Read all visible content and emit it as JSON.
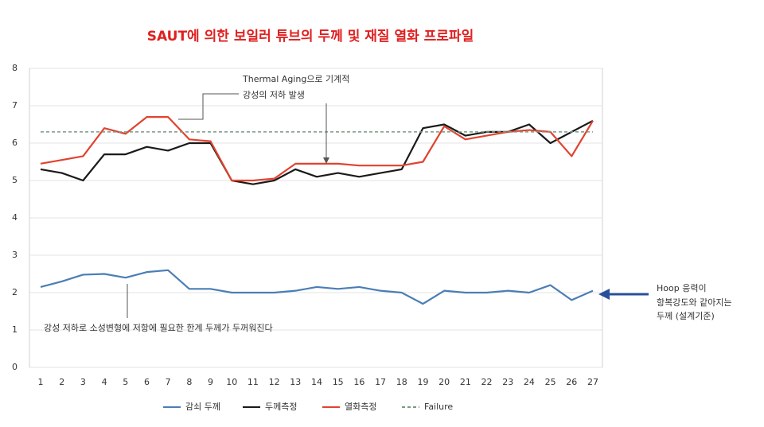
{
  "chart_data": {
    "type": "line",
    "title": "SAUT에 의한 보일러 튜브의 두께 및 재질 열화 프로파일",
    "categories": [
      "1",
      "2",
      "3",
      "4",
      "5",
      "6",
      "7",
      "8",
      "9",
      "10",
      "11",
      "12",
      "13",
      "14",
      "15",
      "16",
      "17",
      "18",
      "19",
      "20",
      "21",
      "22",
      "23",
      "24",
      "25",
      "26",
      "27"
    ],
    "series": [
      {
        "name": "감쇠 두께",
        "color": "#4a7eb5",
        "dashed": false,
        "values": [
          2.15,
          2.3,
          2.48,
          2.5,
          2.4,
          2.55,
          2.6,
          2.1,
          2.1,
          2.0,
          2.0,
          2.0,
          2.05,
          2.15,
          2.1,
          2.15,
          2.05,
          2.0,
          1.7,
          2.05,
          2.0,
          2.0,
          2.05,
          2.0,
          2.2,
          1.8,
          2.05
        ]
      },
      {
        "name": "두께측정",
        "color": "#1a1a1a",
        "dashed": false,
        "values": [
          5.3,
          5.2,
          5.0,
          5.7,
          5.7,
          5.9,
          5.8,
          6.0,
          6.0,
          5.0,
          4.9,
          5.0,
          5.3,
          5.1,
          5.2,
          5.1,
          5.2,
          5.3,
          6.4,
          6.5,
          6.2,
          6.3,
          6.3,
          6.5,
          6.0,
          6.3,
          6.6
        ]
      },
      {
        "name": "열화측정",
        "color": "#e0432f",
        "dashed": false,
        "values": [
          5.45,
          5.55,
          5.65,
          6.4,
          6.25,
          6.7,
          6.7,
          6.1,
          6.05,
          5.0,
          5.0,
          5.05,
          5.45,
          5.45,
          5.45,
          5.4,
          5.4,
          5.4,
          5.5,
          6.45,
          6.1,
          6.2,
          6.3,
          6.35,
          6.3,
          5.65,
          6.6
        ]
      },
      {
        "name": "Failure",
        "color": "#7a9a86",
        "dashed": true,
        "values": [
          6.3,
          6.3,
          6.3,
          6.3,
          6.3,
          6.3,
          6.3,
          6.3,
          6.3,
          6.3,
          6.3,
          6.3,
          6.3,
          6.3,
          6.3,
          6.3,
          6.3,
          6.3,
          6.3,
          6.3,
          6.3,
          6.3,
          6.3,
          6.3,
          6.3,
          6.3,
          6.3
        ]
      }
    ],
    "ylim": [
      0,
      8
    ],
    "yticks": [
      0,
      1,
      2,
      3,
      4,
      5,
      6,
      7,
      8
    ],
    "grid": true,
    "annotations": [
      "Thermal Aging으로 기계적",
      "강성의 저하 발생",
      "강성 저하로 소성변형에 저항에 필요한 한계 두께가 두꺼워진다",
      "Hoop 응력이",
      "항복강도와 같아지는",
      "두께 (설계기준)"
    ]
  }
}
